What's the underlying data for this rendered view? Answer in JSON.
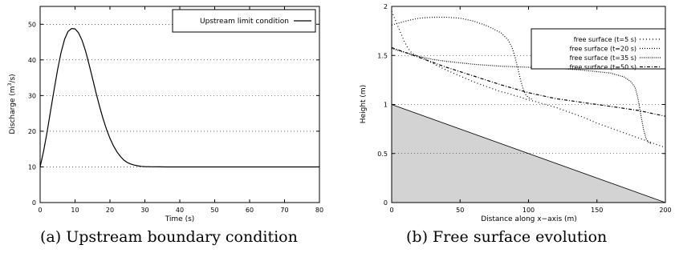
{
  "captions": {
    "a": "(a) Upstream boundary condition",
    "b": "(b) Free surface evolution"
  },
  "chart_data": [
    {
      "type": "line",
      "title": "",
      "xlabel": "Time (s)",
      "ylabel_prefix": "Discharge (m",
      "ylabel_sup": "3",
      "ylabel_suffix": "/s)",
      "xlim": [
        0,
        80
      ],
      "ylim": [
        0,
        55
      ],
      "xticks": [
        0,
        10,
        20,
        30,
        40,
        50,
        60,
        70,
        80
      ],
      "yticks": [
        0,
        10,
        20,
        30,
        40,
        50
      ],
      "grid": "horizontal dotted",
      "legend_position": "top-right",
      "series": [
        {
          "name": "Upstream limit condition",
          "style": "solid",
          "x": [
            0,
            1,
            2,
            3,
            4,
            5,
            6,
            7,
            8,
            9,
            10,
            11,
            12,
            13,
            14,
            15,
            16,
            17,
            18,
            19,
            20,
            21,
            22,
            23,
            24,
            25,
            26,
            27,
            28,
            29,
            30,
            32,
            34,
            36,
            40,
            50,
            60,
            70,
            80
          ],
          "y": [
            10.0,
            14.5,
            19.8,
            25.7,
            31.6,
            37.3,
            42.1,
            45.8,
            48.0,
            48.8,
            48.7,
            47.6,
            45.5,
            42.5,
            38.8,
            34.8,
            30.8,
            27.0,
            23.6,
            20.6,
            18.0,
            15.9,
            14.2,
            12.9,
            11.9,
            11.2,
            10.8,
            10.5,
            10.3,
            10.15,
            10.07,
            10.03,
            10.01,
            10.0,
            10.0,
            10.0,
            10.0,
            10.0,
            10.0
          ]
        }
      ]
    },
    {
      "type": "line",
      "title": "",
      "xlabel": "Distance along x−axis (m)",
      "ylabel": "Height (m)",
      "xlim": [
        0,
        200
      ],
      "ylim": [
        0,
        2
      ],
      "xticks": [
        0,
        50,
        100,
        150,
        200
      ],
      "yticks": [
        0,
        0.5,
        1,
        1.5,
        2
      ],
      "ytick_labels": [
        "0",
        "0.5",
        "1",
        "1.5",
        "2"
      ],
      "grid": "horizontal dotted",
      "legend_position": "top-right",
      "bed": {
        "x": [
          0,
          200
        ],
        "y": [
          1.0,
          0.0
        ],
        "fill": "#d3d3d3"
      },
      "series": [
        {
          "name": "free surface (t=5 s)",
          "dash": "1,3",
          "x": [
            0,
            3,
            6,
            9,
            12,
            15,
            18,
            20,
            25,
            30,
            40,
            50,
            60,
            70,
            80,
            86,
            90,
            93,
            95,
            97,
            99,
            102,
            105,
            110,
            120,
            130,
            140,
            150,
            160,
            170,
            180,
            190,
            200
          ],
          "y": [
            1.95,
            1.85,
            1.75,
            1.65,
            1.57,
            1.52,
            1.5,
            1.49,
            1.46,
            1.42,
            1.35,
            1.29,
            1.23,
            1.18,
            1.13,
            1.11,
            1.09,
            1.08,
            1.07,
            1.06,
            1.05,
            1.04,
            1.03,
            1.01,
            0.97,
            0.92,
            0.87,
            0.81,
            0.76,
            0.71,
            0.66,
            0.61,
            0.56
          ]
        },
        {
          "name": "free surface (t=20 s)",
          "dash": "1,2",
          "x": [
            0,
            10,
            20,
            30,
            40,
            50,
            60,
            70,
            80,
            85,
            88,
            90,
            92,
            94,
            96,
            98,
            100,
            103
          ],
          "y": [
            1.81,
            1.85,
            1.88,
            1.89,
            1.89,
            1.88,
            1.85,
            1.8,
            1.73,
            1.66,
            1.58,
            1.49,
            1.38,
            1.26,
            1.16,
            1.1,
            1.07,
            1.05
          ]
        },
        {
          "name": "free surface (t=35 s)",
          "dash": "1,1.5",
          "x": [
            0,
            10,
            20,
            30,
            40,
            60,
            80,
            100,
            120,
            140,
            160,
            170,
            175,
            178,
            180,
            182,
            184,
            186,
            188,
            190
          ],
          "y": [
            1.57,
            1.53,
            1.49,
            1.46,
            1.44,
            1.41,
            1.39,
            1.38,
            1.37,
            1.35,
            1.32,
            1.28,
            1.23,
            1.17,
            1.06,
            0.9,
            0.75,
            0.65,
            0.61,
            0.6
          ]
        },
        {
          "name": "free surface (t=50 s)",
          "dash": "4,2,1,2",
          "x": [
            0,
            20,
            40,
            60,
            80,
            100,
            120,
            140,
            160,
            180,
            200
          ],
          "y": [
            1.58,
            1.48,
            1.38,
            1.29,
            1.2,
            1.12,
            1.06,
            1.02,
            0.98,
            0.94,
            0.88
          ]
        }
      ]
    }
  ]
}
